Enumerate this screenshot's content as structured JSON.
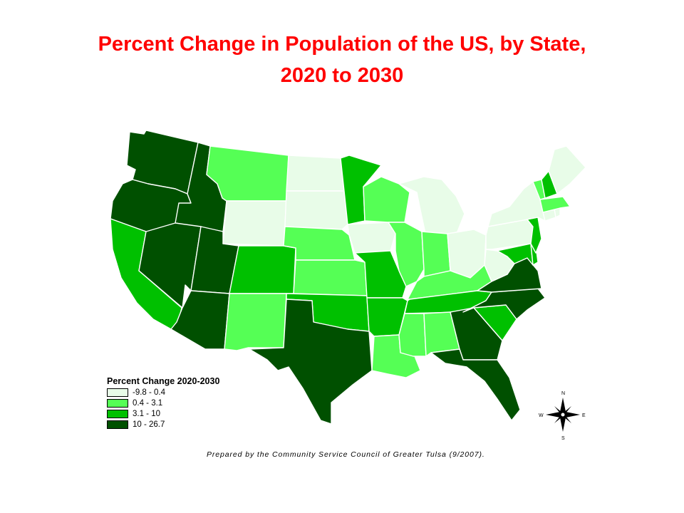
{
  "title": {
    "line1": "Percent Change in Population of the US, by State,",
    "line2": "2020 to 2030"
  },
  "legend": {
    "title": "Percent Change 2020-2030",
    "classes": [
      {
        "label": "-9.8 - 0.4",
        "color": "#e8fce8"
      },
      {
        "label": "0.4 - 3.1",
        "color": "#55ff55"
      },
      {
        "label": "3.1 - 10",
        "color": "#00c000"
      },
      {
        "label": "10 - 26.7",
        "color": "#005000"
      }
    ]
  },
  "compass": {
    "n": "N",
    "s": "S",
    "e": "E",
    "w": "W"
  },
  "credit": "Prepared by the Community Service Council of Greater Tulsa (9/2007).",
  "states": {
    "WA": 3,
    "OR": 3,
    "ID": 3,
    "NV": 3,
    "UT": 3,
    "AZ": 3,
    "TX": 3,
    "GA": 3,
    "FL": 3,
    "NC": 3,
    "VA": 3,
    "CA": 2,
    "CO": 2,
    "OK": 2,
    "MO": 2,
    "AR": 2,
    "MN": 2,
    "TN": 2,
    "SC": 2,
    "NH": 2,
    "NJ": 2,
    "MD": 2,
    "DE": 2,
    "MT": 1,
    "NM": 1,
    "NE": 1,
    "KS": 1,
    "WI": 1,
    "IL": 1,
    "IN": 1,
    "KY": 1,
    "LA": 1,
    "MS": 1,
    "AL": 1,
    "VT": 1,
    "MA": 1,
    "WY": 0,
    "ND": 0,
    "SD": 0,
    "IA": 0,
    "MI": 0,
    "OH": 0,
    "PA": 0,
    "NY": 0,
    "WV": 0,
    "ME": 0,
    "CT": 0,
    "RI": 0
  }
}
